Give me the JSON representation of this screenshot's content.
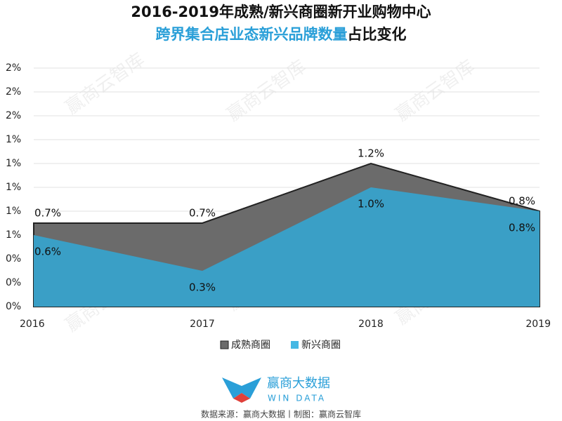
{
  "chart_data": {
    "type": "area",
    "title": "2016-2019年成熟/新兴商圈新开业购物中心",
    "subtitle_highlight": "跨界集合店业态新兴品牌数量",
    "subtitle_rest": "占比变化",
    "categories": [
      "2016",
      "2017",
      "2018",
      "2019"
    ],
    "series": [
      {
        "name": "成熟商圈",
        "color": "#6b6b6b",
        "values": [
          0.7,
          0.7,
          1.2,
          0.8
        ],
        "value_labels": [
          "0.7%",
          "0.7%",
          "1.2%",
          "0.8%"
        ]
      },
      {
        "name": "新兴商圈",
        "color": "#3a9fc6",
        "values": [
          0.6,
          0.3,
          1.0,
          0.8
        ],
        "value_labels": [
          "0.6%",
          "0.3%",
          "1.0%",
          "0.8%"
        ]
      }
    ],
    "ylim": [
      0,
      2
    ],
    "yticks": [
      {
        "value": 0,
        "label": "0%"
      },
      {
        "value": 0.2,
        "label": "0%"
      },
      {
        "value": 0.4,
        "label": "0%"
      },
      {
        "value": 0.6,
        "label": "1%"
      },
      {
        "value": 0.8,
        "label": "1%"
      },
      {
        "value": 1.0,
        "label": "1%"
      },
      {
        "value": 1.2,
        "label": "1%"
      },
      {
        "value": 1.4,
        "label": "1%"
      },
      {
        "value": 1.6,
        "label": "2%"
      },
      {
        "value": 1.8,
        "label": "2%"
      },
      {
        "value": 2.0,
        "label": "2%"
      }
    ],
    "grid": true,
    "watermark": "赢商云智库",
    "logo_name": "赢商大数据",
    "logo_sub": "WIN DATA",
    "source": "数据来源：赢商大数据丨制图：赢商云智库"
  }
}
